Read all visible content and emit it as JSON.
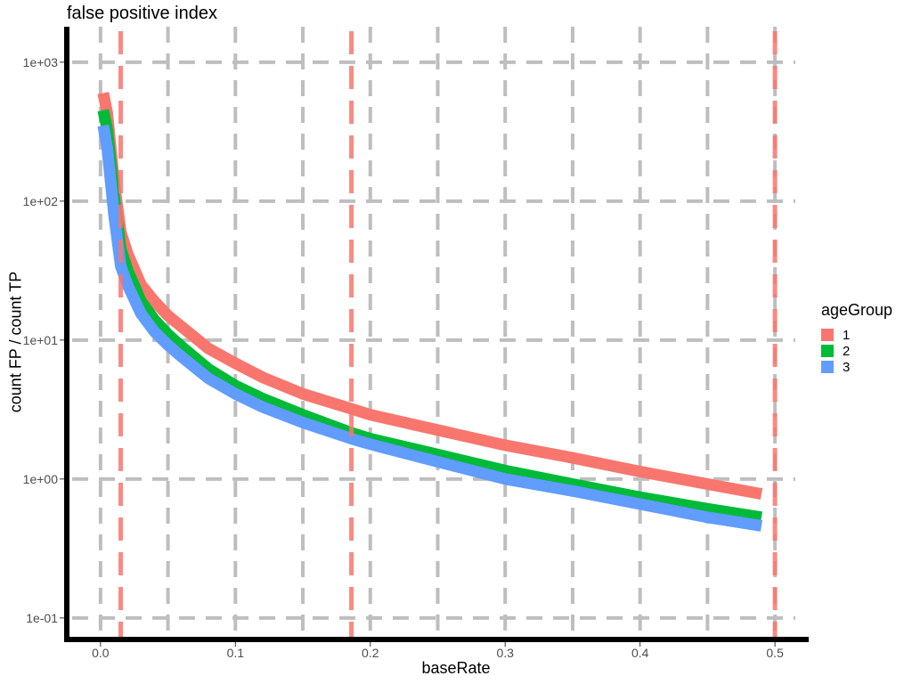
{
  "chart_data": {
    "type": "line",
    "title": "false positive index",
    "xlabel": "baseRate",
    "ylabel": "count FP / count TP",
    "y_scale": "log10",
    "xlim": [
      -0.025,
      0.525
    ],
    "ylim": [
      0.07,
      1800
    ],
    "x_ticks": [
      0.0,
      0.1,
      0.2,
      0.3,
      0.4,
      0.5
    ],
    "x_tick_labels": [
      "0.0",
      "0.1",
      "0.2",
      "0.3",
      "0.4",
      "0.5"
    ],
    "y_ticks": [
      0.1,
      1,
      10,
      100,
      1000
    ],
    "y_tick_labels": [
      "1e-01",
      "1e+00",
      "1e+01",
      "1e+02",
      "1e+03"
    ],
    "grid": true,
    "legend_title": "ageGroup",
    "legend_position": "right",
    "vlines": [
      0.015,
      0.186,
      0.5
    ],
    "vline_color": "#f8766d",
    "series": [
      {
        "name": "1",
        "color": "#f8766d",
        "x": [
          0.002,
          0.005,
          0.01,
          0.015,
          0.02,
          0.03,
          0.04,
          0.05,
          0.06,
          0.08,
          0.1,
          0.12,
          0.15,
          0.186,
          0.2,
          0.25,
          0.3,
          0.35,
          0.4,
          0.45,
          0.49
        ],
        "values": [
          600,
          430,
          140,
          60,
          42,
          25,
          19,
          15,
          12.5,
          8.7,
          6.8,
          5.4,
          4.1,
          3.2,
          2.9,
          2.25,
          1.75,
          1.42,
          1.13,
          0.92,
          0.78
        ]
      },
      {
        "name": "2",
        "color": "#00ba38",
        "x": [
          0.002,
          0.005,
          0.01,
          0.015,
          0.02,
          0.03,
          0.04,
          0.05,
          0.06,
          0.08,
          0.1,
          0.12,
          0.15,
          0.186,
          0.2,
          0.25,
          0.3,
          0.35,
          0.4,
          0.45,
          0.49
        ],
        "values": [
          450,
          330,
          110,
          45,
          32,
          19,
          14,
          11,
          9,
          6.2,
          4.7,
          3.8,
          2.9,
          2.15,
          1.95,
          1.5,
          1.15,
          0.92,
          0.74,
          0.61,
          0.53
        ]
      },
      {
        "name": "3",
        "color": "#619cff",
        "x": [
          0.002,
          0.005,
          0.01,
          0.015,
          0.02,
          0.03,
          0.04,
          0.05,
          0.06,
          0.08,
          0.1,
          0.12,
          0.15,
          0.186,
          0.2,
          0.25,
          0.3,
          0.35,
          0.4,
          0.45,
          0.49
        ],
        "values": [
          350,
          240,
          80,
          34,
          25,
          15.5,
          11.5,
          9.2,
          7.6,
          5.3,
          4.1,
          3.3,
          2.55,
          1.95,
          1.78,
          1.33,
          1.0,
          0.82,
          0.66,
          0.53,
          0.46
        ]
      }
    ]
  }
}
